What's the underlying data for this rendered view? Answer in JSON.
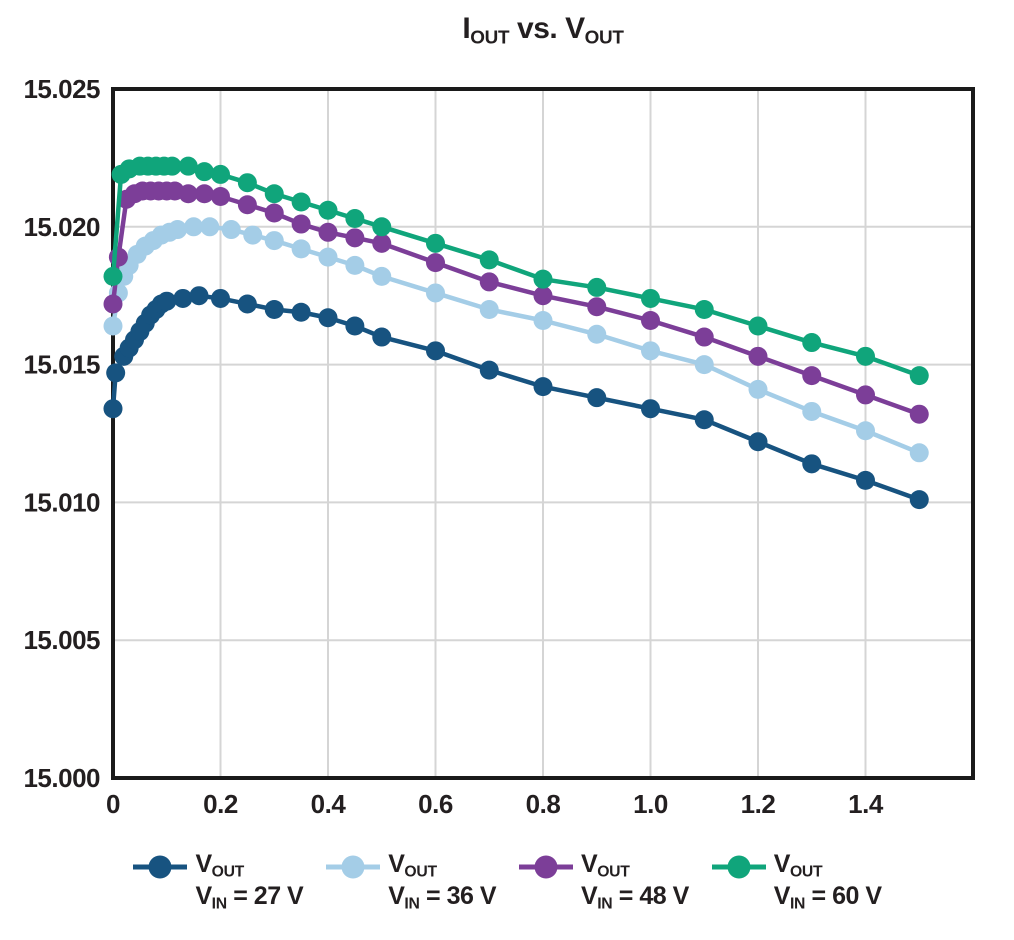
{
  "title": {
    "text": "IOUT vs. VOUT",
    "parts": [
      {
        "t": "I"
      },
      {
        "s": "OUT"
      },
      {
        "t": " vs. V"
      },
      {
        "s": "OUT"
      }
    ]
  },
  "colors": {
    "text": "#231F20",
    "grid": "#D5D5D5",
    "border": "#1A1A1A",
    "background": "#FFFFFF",
    "series_27v": "#175380",
    "series_36v": "#A4CDE7",
    "series_48v": "#7C3E98",
    "series_60v": "#10A57B"
  },
  "chart_data": {
    "type": "line",
    "title": "IOUT vs. VOUT",
    "xlabel": "",
    "ylabel": "",
    "grid": true,
    "legend_position": "bottom",
    "x_axis": {
      "range": [
        0,
        1.6
      ],
      "tick_values": [
        0,
        0.2,
        0.4,
        0.6,
        0.8,
        1.0,
        1.2,
        1.4
      ],
      "tick_labels": [
        "0",
        "0.2",
        "0.4",
        "0.6",
        "0.8",
        "1.0",
        "1.2",
        "1.4"
      ]
    },
    "y_axis": {
      "range": [
        15.0,
        15.025
      ],
      "tick_values": [
        15.0,
        15.005,
        15.01,
        15.015,
        15.02,
        15.025
      ],
      "tick_labels": [
        "15.000",
        "15.005",
        "15.010",
        "15.015",
        "15.020",
        "15.025"
      ]
    },
    "series": [
      {
        "name": "VOUT, VIN = 27 V",
        "color": "#175380",
        "x": [
          0,
          0.005,
          0.02,
          0.03,
          0.04,
          0.05,
          0.06,
          0.07,
          0.08,
          0.09,
          0.1,
          0.13,
          0.16,
          0.2,
          0.25,
          0.3,
          0.35,
          0.4,
          0.45,
          0.5,
          0.6,
          0.7,
          0.8,
          0.9,
          1.0,
          1.1,
          1.2,
          1.3,
          1.4,
          1.5
        ],
        "y": [
          15.0134,
          15.0147,
          15.0153,
          15.0156,
          15.0159,
          15.0162,
          15.0165,
          15.0168,
          15.017,
          15.0172,
          15.0173,
          15.0174,
          15.0175,
          15.0174,
          15.0172,
          15.017,
          15.0169,
          15.0167,
          15.0164,
          15.016,
          15.0155,
          15.0148,
          15.0142,
          15.0138,
          15.0134,
          15.013,
          15.0122,
          15.0114,
          15.0108,
          15.0101
        ]
      },
      {
        "name": "VOUT, VIN = 36 V",
        "color": "#A4CDE7",
        "x": [
          0,
          0.01,
          0.02,
          0.03,
          0.045,
          0.06,
          0.075,
          0.09,
          0.105,
          0.12,
          0.15,
          0.18,
          0.22,
          0.26,
          0.3,
          0.35,
          0.4,
          0.45,
          0.5,
          0.6,
          0.7,
          0.8,
          0.9,
          1.0,
          1.1,
          1.2,
          1.3,
          1.4,
          1.5
        ],
        "y": [
          15.0164,
          15.0176,
          15.0182,
          15.0186,
          15.019,
          15.0193,
          15.0195,
          15.0197,
          15.0198,
          15.0199,
          15.02,
          15.02,
          15.0199,
          15.0197,
          15.0195,
          15.0192,
          15.0189,
          15.0186,
          15.0182,
          15.0176,
          15.017,
          15.0166,
          15.0161,
          15.0155,
          15.015,
          15.0141,
          15.0133,
          15.0126,
          15.0118
        ]
      },
      {
        "name": "VOUT, VIN = 48 V",
        "color": "#7C3E98",
        "x": [
          0,
          0.01,
          0.025,
          0.04,
          0.055,
          0.07,
          0.085,
          0.1,
          0.115,
          0.14,
          0.17,
          0.2,
          0.25,
          0.3,
          0.35,
          0.4,
          0.45,
          0.5,
          0.6,
          0.7,
          0.8,
          0.9,
          1.0,
          1.1,
          1.2,
          1.3,
          1.4,
          1.5
        ],
        "y": [
          15.0172,
          15.0189,
          15.021,
          15.0212,
          15.0213,
          15.0213,
          15.0213,
          15.0213,
          15.0213,
          15.0212,
          15.0212,
          15.0211,
          15.0208,
          15.0205,
          15.0201,
          15.0198,
          15.0196,
          15.0194,
          15.0187,
          15.018,
          15.0175,
          15.0171,
          15.0166,
          15.016,
          15.0153,
          15.0146,
          15.0139,
          15.0132
        ]
      },
      {
        "name": "VOUT, VIN = 60 V",
        "color": "#10A57B",
        "x": [
          0,
          0.015,
          0.03,
          0.05,
          0.065,
          0.08,
          0.095,
          0.11,
          0.14,
          0.17,
          0.2,
          0.25,
          0.3,
          0.35,
          0.4,
          0.45,
          0.5,
          0.6,
          0.7,
          0.8,
          0.9,
          1.0,
          1.1,
          1.2,
          1.3,
          1.4,
          1.5
        ],
        "y": [
          15.0182,
          15.0219,
          15.0221,
          15.0222,
          15.0222,
          15.0222,
          15.0222,
          15.0222,
          15.0222,
          15.022,
          15.0219,
          15.0216,
          15.0212,
          15.0209,
          15.0206,
          15.0203,
          15.02,
          15.0194,
          15.0188,
          15.0181,
          15.0178,
          15.0174,
          15.017,
          15.0164,
          15.0158,
          15.0153,
          15.0146
        ]
      }
    ]
  },
  "legend": {
    "items": [
      {
        "name": "VOUT, VIN = 27 V",
        "color": "#175380",
        "line1_parts": [
          {
            "t": "V"
          },
          {
            "s": "OUT"
          }
        ],
        "line2_parts": [
          {
            "t": "V"
          },
          {
            "s": "IN"
          },
          {
            "t": " = 27 V"
          }
        ]
      },
      {
        "name": "VOUT, VIN = 36 V",
        "color": "#A4CDE7",
        "line1_parts": [
          {
            "t": "V"
          },
          {
            "s": "OUT"
          }
        ],
        "line2_parts": [
          {
            "t": "V"
          },
          {
            "s": "IN"
          },
          {
            "t": " = 36 V"
          }
        ]
      },
      {
        "name": "VOUT, VIN = 48 V",
        "color": "#7C3E98",
        "line1_parts": [
          {
            "t": "V"
          },
          {
            "s": "OUT"
          }
        ],
        "line2_parts": [
          {
            "t": "V"
          },
          {
            "s": "IN"
          },
          {
            "t": " = 48 V"
          }
        ]
      },
      {
        "name": "VOUT, VIN = 60 V",
        "color": "#10A57B",
        "line1_parts": [
          {
            "t": "V"
          },
          {
            "s": "OUT"
          }
        ],
        "line2_parts": [
          {
            "t": "V"
          },
          {
            "s": "IN"
          },
          {
            "t": " = 60 V"
          }
        ]
      }
    ]
  }
}
